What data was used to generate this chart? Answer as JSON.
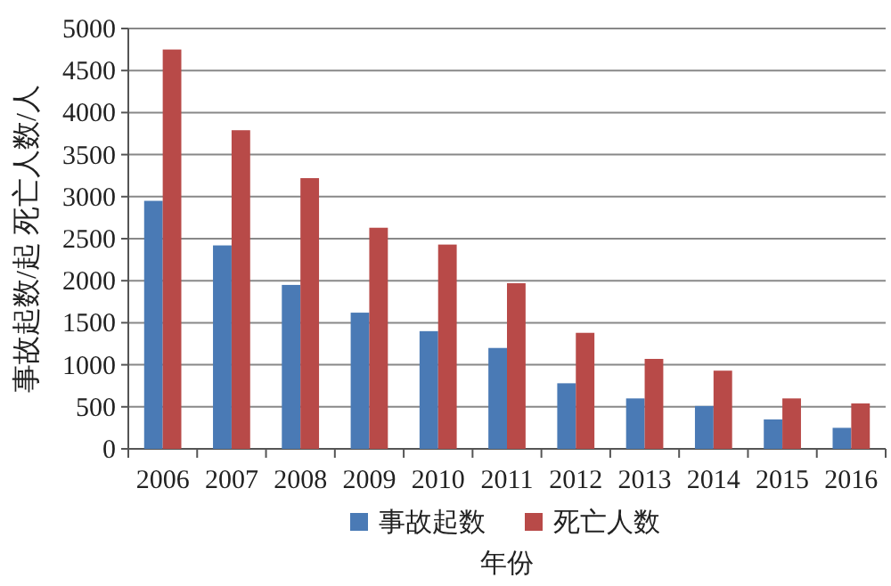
{
  "chart_data": {
    "type": "bar",
    "xlabel": "年份",
    "ylabel": "事故起数/起  死亡人数/人",
    "categories": [
      "2006",
      "2007",
      "2008",
      "2009",
      "2010",
      "2011",
      "2012",
      "2013",
      "2014",
      "2015",
      "2016"
    ],
    "series": [
      {
        "name": "事故起数",
        "color": "#4a7ab5",
        "values": [
          2950,
          2420,
          1950,
          1620,
          1400,
          1200,
          780,
          600,
          510,
          350,
          250
        ]
      },
      {
        "name": "死亡人数",
        "color": "#b84a48",
        "values": [
          4750,
          3790,
          3220,
          2630,
          2430,
          1970,
          1380,
          1070,
          930,
          600,
          540
        ]
      }
    ],
    "ylim": [
      0,
      5000
    ],
    "yticks": [
      0,
      500,
      1000,
      1500,
      2000,
      2500,
      3000,
      3500,
      4000,
      4500,
      5000
    ],
    "grid": "y",
    "legend": "bottom"
  }
}
